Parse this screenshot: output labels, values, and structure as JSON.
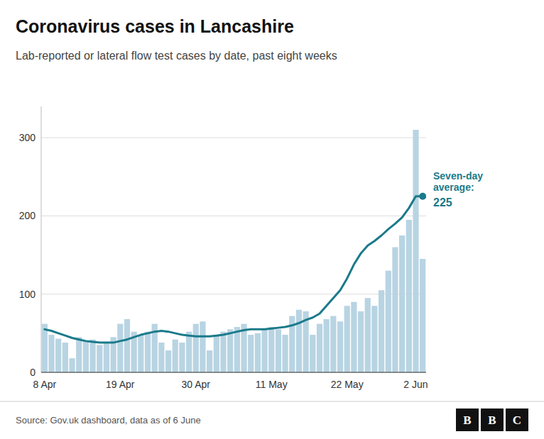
{
  "chart_data": {
    "type": "bar",
    "title": "Coronavirus cases in Lancashire",
    "subtitle": "Lab-reported or lateral flow test cases by date, past eight weeks",
    "source": "Source: Gov.uk dashboard, data as of  6 June",
    "annotation": [
      "Seven-day",
      "average:",
      "225"
    ],
    "logo": [
      "B",
      "B",
      "C"
    ],
    "categories": [
      "8 Apr",
      null,
      null,
      null,
      null,
      null,
      null,
      null,
      null,
      null,
      null,
      "19 Apr",
      null,
      null,
      null,
      null,
      null,
      null,
      null,
      null,
      null,
      null,
      "30 Apr",
      null,
      null,
      null,
      null,
      null,
      null,
      null,
      null,
      null,
      null,
      "11 May",
      null,
      null,
      null,
      null,
      null,
      null,
      null,
      null,
      null,
      null,
      "22 May",
      null,
      null,
      null,
      null,
      null,
      null,
      null,
      null,
      null,
      "2 Jun",
      null
    ],
    "series": [
      {
        "type": "bar",
        "color": "#b8d4e3",
        "values": [
          62,
          48,
          43,
          38,
          18,
          45,
          40,
          42,
          35,
          38,
          45,
          62,
          68,
          52,
          48,
          52,
          62,
          38,
          28,
          42,
          38,
          52,
          62,
          65,
          28,
          48,
          52,
          55,
          58,
          62,
          48,
          50,
          55,
          58,
          55,
          48,
          72,
          80,
          78,
          48,
          62,
          68,
          72,
          65,
          85,
          90,
          78,
          95,
          85,
          105,
          130,
          160,
          175,
          195,
          310,
          145
        ]
      },
      {
        "type": "line",
        "color": "#1a7a8a",
        "marker": "last",
        "values": [
          55,
          53,
          50,
          47,
          44,
          42,
          40,
          39,
          38,
          38,
          38,
          40,
          42,
          45,
          48,
          50,
          52,
          53,
          52,
          50,
          48,
          47,
          46,
          46,
          46,
          47,
          48,
          50,
          52,
          54,
          55,
          55,
          55,
          56,
          57,
          58,
          60,
          63,
          67,
          70,
          75,
          85,
          95,
          105,
          120,
          138,
          152,
          162,
          168,
          175,
          183,
          190,
          198,
          210,
          225,
          225
        ]
      }
    ],
    "ylim": [
      0,
      340
    ],
    "yticks": [
      0,
      100,
      200,
      300
    ],
    "grid": true
  }
}
